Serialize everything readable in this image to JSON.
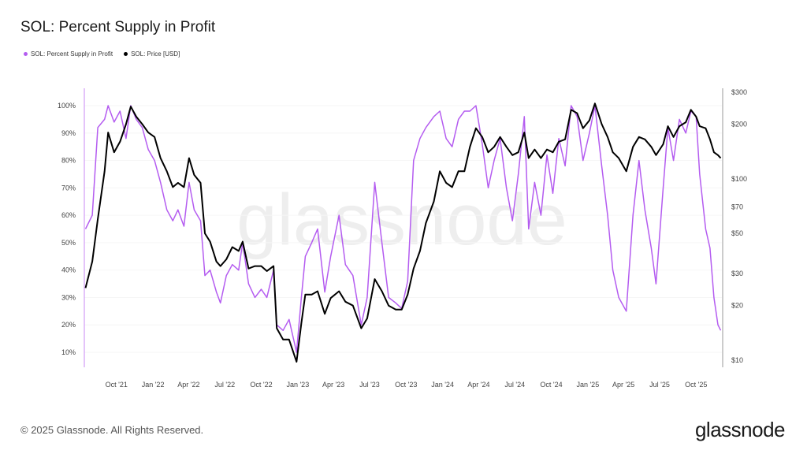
{
  "title": "SOL: Percent Supply in Profit",
  "legend": [
    {
      "label": "SOL: Percent Supply in Profit",
      "color": "#b45cf0"
    },
    {
      "label": "SOL: Price [USD]",
      "color": "#000000"
    }
  ],
  "watermark": "glassnode",
  "footer": {
    "copyright": "© 2025 Glassnode. All Rights Reserved.",
    "brand": "glassnode"
  },
  "chart_data": {
    "type": "line",
    "title": "SOL: Percent Supply in Profit",
    "x_range": [
      "2021-07-12",
      "2025-12-05"
    ],
    "x_ticks": [
      {
        "label": "Oct '21",
        "date": "2021-10-01"
      },
      {
        "label": "Jan '22",
        "date": "2022-01-01"
      },
      {
        "label": "Apr '22",
        "date": "2022-04-01"
      },
      {
        "label": "Jul '22",
        "date": "2022-07-01"
      },
      {
        "label": "Oct '22",
        "date": "2022-10-01"
      },
      {
        "label": "Jan '23",
        "date": "2023-01-01"
      },
      {
        "label": "Apr '23",
        "date": "2023-04-01"
      },
      {
        "label": "Jul '23",
        "date": "2023-07-01"
      },
      {
        "label": "Oct '23",
        "date": "2023-10-01"
      },
      {
        "label": "Jan '24",
        "date": "2024-01-01"
      },
      {
        "label": "Apr '24",
        "date": "2024-04-01"
      },
      {
        "label": "Jul '24",
        "date": "2024-07-01"
      },
      {
        "label": "Oct '24",
        "date": "2024-10-01"
      },
      {
        "label": "Jan '25",
        "date": "2025-01-01"
      },
      {
        "label": "Apr '25",
        "date": "2025-04-01"
      },
      {
        "label": "Jul '25",
        "date": "2025-07-01"
      },
      {
        "label": "Oct '25",
        "date": "2025-10-01"
      }
    ],
    "y_left": {
      "label": "Percent Supply in Profit",
      "range": [
        0,
        100
      ],
      "ticks": [
        {
          "v": 10,
          "label": "10%"
        },
        {
          "v": 20,
          "label": "20%"
        },
        {
          "v": 30,
          "label": "30%"
        },
        {
          "v": 40,
          "label": "40%"
        },
        {
          "v": 50,
          "label": "50%"
        },
        {
          "v": 60,
          "label": "60%"
        },
        {
          "v": 70,
          "label": "70%"
        },
        {
          "v": 80,
          "label": "80%"
        },
        {
          "v": 90,
          "label": "90%"
        },
        {
          "v": 100,
          "label": "100%"
        }
      ]
    },
    "y_right": {
      "label": "Price [USD]",
      "scale": "log",
      "range": [
        10,
        300
      ],
      "ticks": [
        {
          "v": 10,
          "label": "$10"
        },
        {
          "v": 20,
          "label": "$20"
        },
        {
          "v": 30,
          "label": "$30"
        },
        {
          "v": 50,
          "label": "$50"
        },
        {
          "v": 70,
          "label": "$70"
        },
        {
          "v": 100,
          "label": "$100"
        },
        {
          "v": 200,
          "label": "$200"
        },
        {
          "v": 300,
          "label": "$300"
        }
      ]
    },
    "series": [
      {
        "name": "SOL: Percent Supply in Profit",
        "axis": "left",
        "color": "#b45cf0"
      },
      {
        "name": "SOL: Price [USD]",
        "axis": "right",
        "color": "#000000"
      }
    ],
    "dates": [
      "2021-07-15",
      "2021-08-01",
      "2021-08-15",
      "2021-09-01",
      "2021-09-10",
      "2021-09-25",
      "2021-10-10",
      "2021-10-25",
      "2021-11-06",
      "2021-11-20",
      "2021-12-05",
      "2021-12-20",
      "2022-01-05",
      "2022-01-20",
      "2022-02-05",
      "2022-02-20",
      "2022-03-05",
      "2022-03-20",
      "2022-04-02",
      "2022-04-15",
      "2022-05-01",
      "2022-05-12",
      "2022-05-25",
      "2022-06-10",
      "2022-06-20",
      "2022-07-05",
      "2022-07-20",
      "2022-08-05",
      "2022-08-15",
      "2022-08-30",
      "2022-09-15",
      "2022-10-01",
      "2022-10-15",
      "2022-11-01",
      "2022-11-09",
      "2022-11-25",
      "2022-12-10",
      "2022-12-29",
      "2023-01-10",
      "2023-01-20",
      "2023-02-05",
      "2023-02-20",
      "2023-03-10",
      "2023-03-25",
      "2023-04-15",
      "2023-05-01",
      "2023-05-20",
      "2023-06-10",
      "2023-06-25",
      "2023-07-14",
      "2023-08-01",
      "2023-08-18",
      "2023-09-05",
      "2023-09-20",
      "2023-10-05",
      "2023-10-20",
      "2023-11-05",
      "2023-11-20",
      "2023-12-10",
      "2023-12-25",
      "2024-01-10",
      "2024-01-25",
      "2024-02-10",
      "2024-02-25",
      "2024-03-10",
      "2024-03-25",
      "2024-04-10",
      "2024-04-25",
      "2024-05-10",
      "2024-05-25",
      "2024-06-10",
      "2024-06-25",
      "2024-07-10",
      "2024-07-25",
      "2024-08-05",
      "2024-08-20",
      "2024-09-05",
      "2024-09-20",
      "2024-10-05",
      "2024-10-20",
      "2024-11-05",
      "2024-11-20",
      "2024-12-05",
      "2024-12-20",
      "2025-01-05",
      "2025-01-19",
      "2025-02-05",
      "2025-02-20",
      "2025-03-05",
      "2025-03-20",
      "2025-04-08",
      "2025-04-25",
      "2025-05-10",
      "2025-05-25",
      "2025-06-10",
      "2025-06-22",
      "2025-07-10",
      "2025-07-22",
      "2025-08-05",
      "2025-08-20",
      "2025-09-05",
      "2025-09-18",
      "2025-10-01",
      "2025-10-10",
      "2025-10-25",
      "2025-11-05",
      "2025-11-15",
      "2025-11-25",
      "2025-12-02"
    ],
    "percent": [
      55,
      60,
      92,
      95,
      100,
      94,
      98,
      88,
      100,
      95,
      92,
      84,
      80,
      72,
      62,
      58,
      62,
      56,
      72,
      62,
      58,
      38,
      40,
      32,
      28,
      38,
      42,
      40,
      50,
      35,
      30,
      33,
      30,
      40,
      20,
      18,
      22,
      10,
      30,
      45,
      50,
      55,
      32,
      45,
      60,
      42,
      38,
      20,
      30,
      72,
      50,
      30,
      28,
      26,
      36,
      80,
      88,
      92,
      96,
      98,
      88,
      85,
      95,
      98,
      98,
      100,
      86,
      70,
      80,
      88,
      70,
      58,
      75,
      96,
      55,
      72,
      60,
      82,
      68,
      88,
      78,
      100,
      96,
      80,
      90,
      100,
      78,
      60,
      40,
      30,
      25,
      60,
      80,
      62,
      48,
      35,
      70,
      92,
      80,
      95,
      90,
      98,
      96,
      75,
      55,
      48,
      30,
      20,
      18
    ],
    "price": [
      25,
      35,
      60,
      110,
      180,
      140,
      160,
      200,
      250,
      220,
      200,
      180,
      170,
      130,
      110,
      90,
      95,
      90,
      130,
      105,
      95,
      50,
      45,
      35,
      33,
      36,
      42,
      40,
      45,
      32,
      33,
      33,
      31,
      33,
      15,
      13,
      13,
      9.8,
      16,
      23,
      23,
      24,
      18,
      22,
      24,
      21,
      20,
      15,
      17,
      28,
      24,
      20,
      19,
      19,
      23,
      32,
      40,
      57,
      75,
      110,
      95,
      90,
      110,
      110,
      150,
      190,
      170,
      140,
      150,
      170,
      150,
      135,
      140,
      180,
      130,
      145,
      130,
      145,
      140,
      160,
      165,
      240,
      230,
      190,
      210,
      260,
      200,
      170,
      140,
      130,
      110,
      150,
      170,
      165,
      150,
      135,
      155,
      195,
      170,
      195,
      205,
      240,
      220,
      195,
      190,
      165,
      140,
      135,
      130
    ]
  }
}
